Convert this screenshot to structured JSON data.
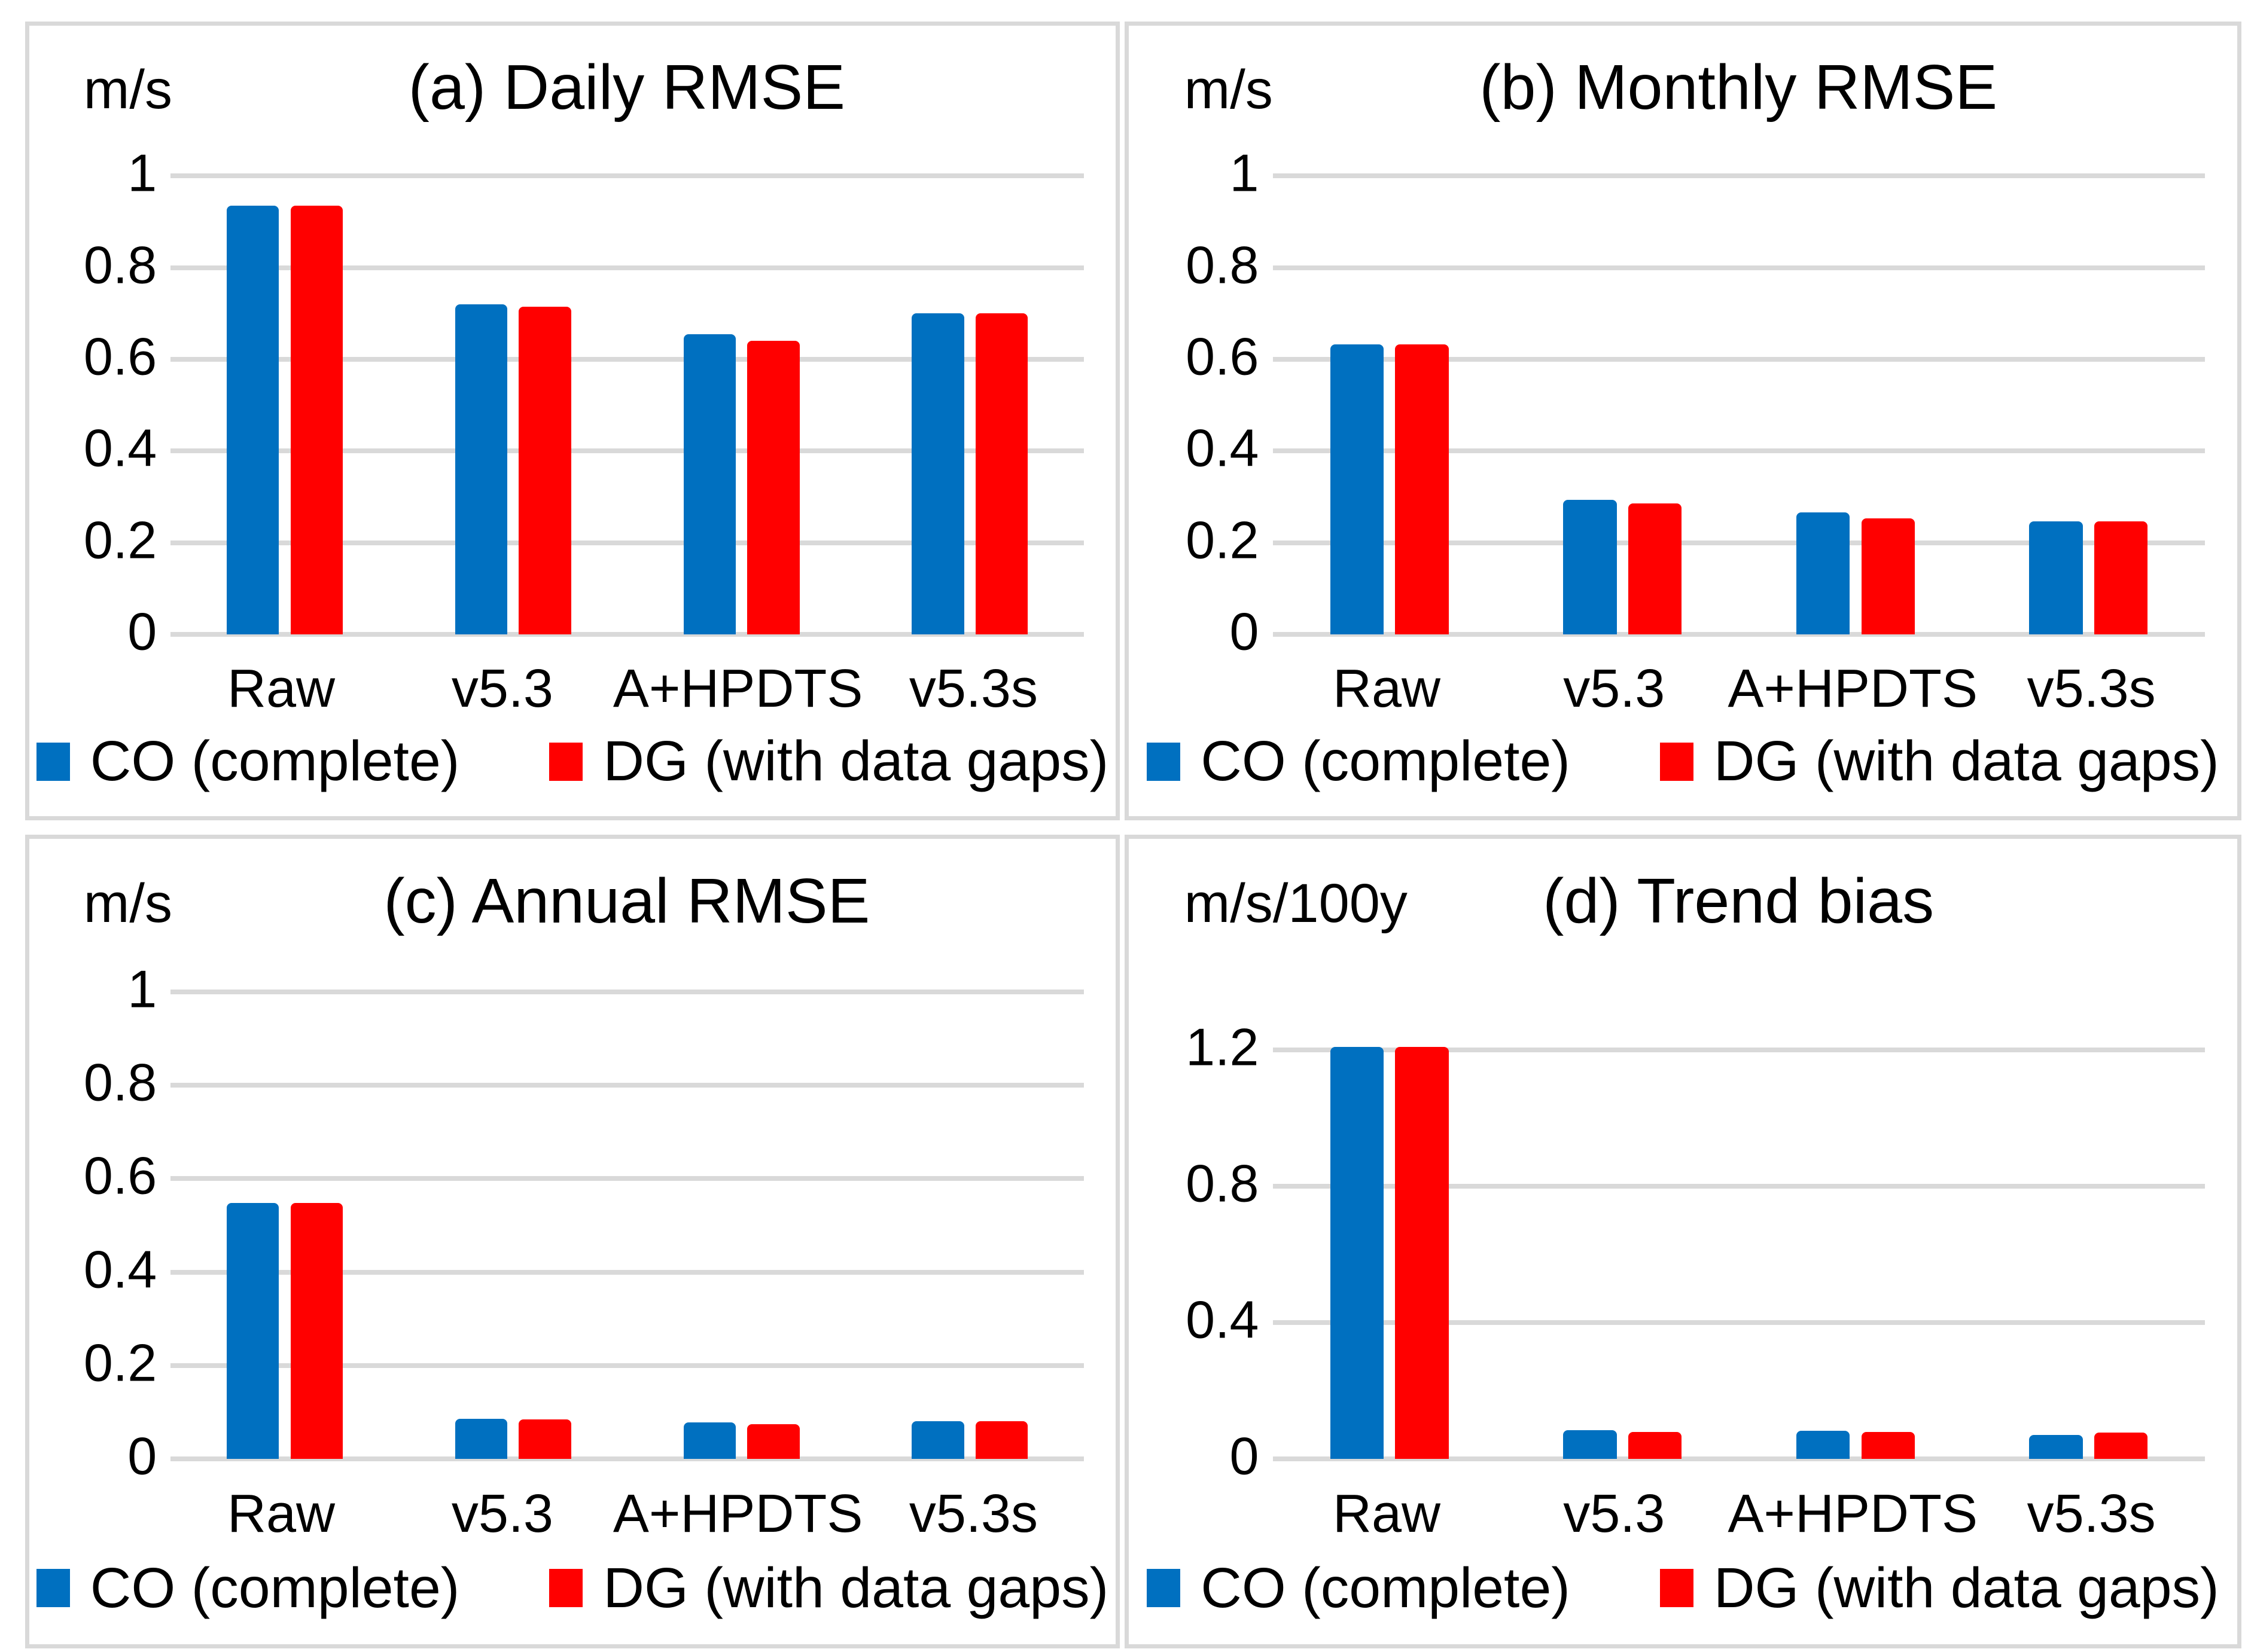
{
  "figure": {
    "kind": "2x2 grid of bar charts comparing homogenization methods",
    "background": "#FFFFFF"
  },
  "colors": {
    "co_blue": "#0070C0",
    "dg_red": "#FF0000",
    "gridline": "#D9D9D9",
    "panel_border": "#D9D9D9",
    "text": "#000000"
  },
  "legend": {
    "co_label": "CO (complete)",
    "dg_label": "DG (with data gaps)"
  },
  "chart_data": [
    {
      "id": "a",
      "type": "bar",
      "title": "(a) Daily RMSE",
      "ylabel": "m/s",
      "xlabel": "",
      "categories": [
        "Raw",
        "v5.3",
        "A+HPDTS",
        "v5.3s"
      ],
      "series": [
        {
          "name": "CO (complete)",
          "color": "#0070C0",
          "values": [
            0.935,
            0.72,
            0.655,
            0.7
          ]
        },
        {
          "name": "DG (with data gaps)",
          "color": "#FF0000",
          "values": [
            0.935,
            0.715,
            0.64,
            0.7
          ]
        }
      ],
      "ylim": [
        0,
        1.0
      ],
      "yticks": [
        0,
        0.2,
        0.4,
        0.6,
        0.8,
        1
      ],
      "ytick_labels": [
        "0",
        "0.2",
        "0.4",
        "0.6",
        "0.8",
        "1"
      ],
      "grid": true,
      "legend_position": "bottom",
      "plot_top_pct": 19
    },
    {
      "id": "b",
      "type": "bar",
      "title": "(b) Monthly RMSE",
      "ylabel": "m/s",
      "xlabel": "",
      "categories": [
        "Raw",
        "v5.3",
        "A+HPDTS",
        "v5.3s"
      ],
      "series": [
        {
          "name": "CO (complete)",
          "color": "#0070C0",
          "values": [
            0.632,
            0.293,
            0.266,
            0.247
          ]
        },
        {
          "name": "DG (with data gaps)",
          "color": "#FF0000",
          "values": [
            0.632,
            0.285,
            0.253,
            0.246
          ]
        }
      ],
      "ylim": [
        0,
        1.0
      ],
      "yticks": [
        0,
        0.2,
        0.4,
        0.6,
        0.8,
        1
      ],
      "ytick_labels": [
        "0",
        "0.2",
        "0.4",
        "0.6",
        "0.8",
        "1"
      ],
      "grid": true,
      "legend_position": "bottom",
      "plot_top_pct": 19
    },
    {
      "id": "c",
      "type": "bar",
      "title": "(c) Annual RMSE",
      "ylabel": "m/s",
      "xlabel": "",
      "categories": [
        "Raw",
        "v5.3",
        "A+HPDTS",
        "v5.3s"
      ],
      "series": [
        {
          "name": "CO (complete)",
          "color": "#0070C0",
          "values": [
            0.548,
            0.086,
            0.078,
            0.081
          ]
        },
        {
          "name": "DG (with data gaps)",
          "color": "#FF0000",
          "values": [
            0.548,
            0.085,
            0.074,
            0.081
          ]
        }
      ],
      "ylim": [
        0,
        1.0
      ],
      "yticks": [
        0,
        0.2,
        0.4,
        0.6,
        0.8,
        1
      ],
      "ytick_labels": [
        "0",
        "0.2",
        "0.4",
        "0.6",
        "0.8",
        "1"
      ],
      "grid": true,
      "legend_position": "bottom",
      "plot_top_pct": 19
    },
    {
      "id": "d",
      "type": "bar",
      "title": "(d) Trend bias",
      "ylabel": "m/s/100y",
      "xlabel": "",
      "categories": [
        "Raw",
        "v5.3",
        "A+HPDTS",
        "v5.3s"
      ],
      "series": [
        {
          "name": "CO (complete)",
          "color": "#0070C0",
          "values": [
            1.21,
            0.085,
            0.082,
            0.071
          ]
        },
        {
          "name": "DG (with data gaps)",
          "color": "#FF0000",
          "values": [
            1.21,
            0.079,
            0.079,
            0.077
          ]
        }
      ],
      "ylim": [
        0,
        1.3
      ],
      "yticks": [
        0,
        0.4,
        0.8,
        1.2
      ],
      "ytick_labels": [
        "0",
        "0.4",
        "0.8",
        "1.2"
      ],
      "grid": true,
      "legend_position": "bottom",
      "plot_top_pct": 22
    }
  ]
}
